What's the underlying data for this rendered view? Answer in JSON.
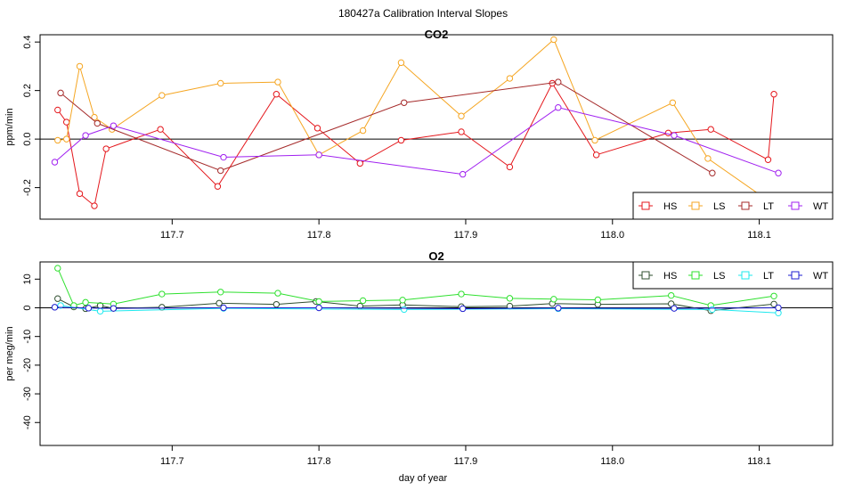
{
  "figure": {
    "title": "180427a   Calibration Interval Slopes",
    "xlabel": "day of year"
  },
  "chart_data": [
    {
      "type": "line",
      "title": "CO2",
      "xlabel": "",
      "ylabel": "ppm/min",
      "xlim": [
        117.61,
        118.15
      ],
      "ylim": [
        -0.33,
        0.43
      ],
      "xticks": [
        "117.7",
        "117.8",
        "117.9",
        "118.0",
        "118.1"
      ],
      "yticks": [
        "-0.2",
        "0.0",
        "0.2",
        "0.4"
      ],
      "hline": 0,
      "legend_position": "bottom-right",
      "series": [
        {
          "name": "HS",
          "color": "#e4171c",
          "x": [
            117.622,
            117.628,
            117.637,
            117.647,
            117.655,
            117.692,
            117.731,
            117.771,
            117.799,
            117.828,
            117.856,
            117.897,
            117.93,
            117.959,
            117.989,
            118.038,
            118.067,
            118.106,
            118.11
          ],
          "y": [
            0.12,
            0.07,
            -0.225,
            -0.275,
            -0.04,
            0.04,
            -0.195,
            0.185,
            0.045,
            -0.1,
            -0.005,
            0.03,
            -0.115,
            0.23,
            -0.065,
            0.025,
            0.04,
            -0.085,
            0.185
          ]
        },
        {
          "name": "LS",
          "color": "#f5a623",
          "x": [
            117.622,
            117.628,
            117.637,
            117.647,
            117.659,
            117.693,
            117.733,
            117.772,
            117.8,
            117.83,
            117.856,
            117.897,
            117.93,
            117.96,
            117.988,
            118.041,
            118.065,
            118.11
          ],
          "y": [
            -0.005,
            0.0,
            0.3,
            0.09,
            0.04,
            0.18,
            0.23,
            0.235,
            -0.065,
            0.035,
            0.315,
            0.095,
            0.25,
            0.41,
            -0.005,
            0.15,
            -0.08,
            -0.27
          ]
        },
        {
          "name": "LT",
          "color": "#a52a2a",
          "x": [
            117.624,
            117.649,
            117.733,
            117.858,
            117.963,
            118.068
          ],
          "y": [
            0.19,
            0.065,
            -0.13,
            0.15,
            0.235,
            -0.14
          ]
        },
        {
          "name": "WT",
          "color": "#a020f0",
          "x": [
            117.62,
            117.641,
            117.66,
            117.735,
            117.8,
            117.898,
            117.963,
            118.042,
            118.113
          ],
          "y": [
            -0.095,
            0.015,
            0.055,
            -0.075,
            -0.065,
            -0.145,
            0.13,
            0.015,
            -0.14
          ]
        }
      ]
    },
    {
      "type": "line",
      "title": "O2",
      "xlabel": "day of year",
      "ylabel": "per meg/min",
      "xlim": [
        117.61,
        118.15
      ],
      "ylim": [
        -48,
        16
      ],
      "xticks": [
        "117.7",
        "117.8",
        "117.9",
        "118.0",
        "118.1"
      ],
      "yticks": [
        "-40",
        "-30",
        "-20",
        "-10",
        "0",
        "10"
      ],
      "hline": 0,
      "legend_position": "top-right",
      "series": [
        {
          "name": "HS",
          "color": "#2f4f2f",
          "x": [
            117.622,
            117.633,
            117.641,
            117.651,
            117.66,
            117.693,
            117.732,
            117.771,
            117.798,
            117.828,
            117.857,
            117.897,
            117.93,
            117.959,
            117.99,
            118.04,
            118.067,
            118.11
          ],
          "y": [
            3.2,
            0.3,
            -0.3,
            0.8,
            -0.2,
            0.2,
            1.6,
            1.2,
            2.2,
            0.6,
            1.0,
            0.4,
            0.6,
            1.5,
            1.2,
            1.4,
            -1.0,
            1.3
          ]
        },
        {
          "name": "LS",
          "color": "#2ee02e",
          "x": [
            117.622,
            117.633,
            117.641,
            117.66,
            117.693,
            117.733,
            117.772,
            117.8,
            117.83,
            117.857,
            117.897,
            117.93,
            117.96,
            117.99,
            118.04,
            118.067,
            118.11
          ],
          "y": [
            13.8,
            0.8,
            1.9,
            1.3,
            4.8,
            5.5,
            5.1,
            2.2,
            2.5,
            2.7,
            4.8,
            3.3,
            3.0,
            2.8,
            4.3,
            0.8,
            4.1
          ]
        },
        {
          "name": "LT",
          "color": "#1ee8ee",
          "x": [
            117.624,
            117.651,
            117.735,
            117.858,
            117.963,
            118.068,
            118.113
          ],
          "y": [
            0.8,
            -1.2,
            -0.2,
            -0.6,
            -0.3,
            -0.6,
            -1.8
          ]
        },
        {
          "name": "WT",
          "color": "#1c1cd0",
          "x": [
            117.62,
            117.643,
            117.66,
            117.735,
            117.8,
            117.898,
            117.963,
            118.042,
            118.113
          ],
          "y": [
            0.2,
            -0.1,
            -0.2,
            0.0,
            0.0,
            -0.3,
            -0.1,
            -0.2,
            0.0
          ]
        }
      ]
    }
  ]
}
